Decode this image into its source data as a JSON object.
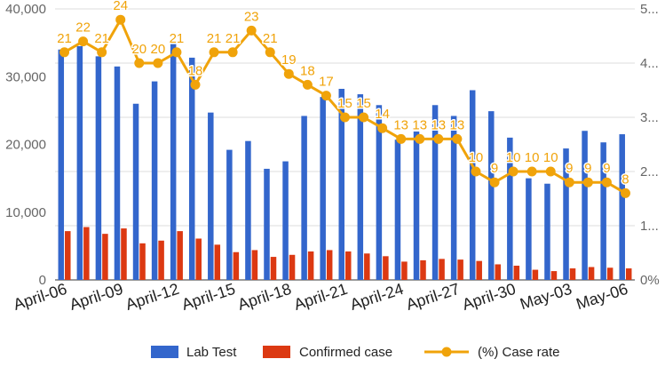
{
  "chart_data": {
    "type": "bar+line",
    "categories": [
      "April-06",
      "April-07",
      "April-08",
      "April-09",
      "April-10",
      "April-11",
      "April-12",
      "April-13",
      "April-14",
      "April-15",
      "April-16",
      "April-17",
      "April-18",
      "April-19",
      "April-20",
      "April-21",
      "April-22",
      "April-23",
      "April-24",
      "April-25",
      "April-26",
      "April-27",
      "April-28",
      "April-29",
      "April-30",
      "May-01",
      "May-02",
      "May-03",
      "May-04",
      "May-05",
      "May-06"
    ],
    "x_tick_labels": [
      "April-06",
      "April-09",
      "April-12",
      "April-15",
      "April-18",
      "April-21",
      "April-24",
      "April-27",
      "April-30",
      "May-03",
      "May-06"
    ],
    "series": [
      {
        "name": "Lab Test",
        "axis": "left",
        "type": "bar",
        "color": "#3366cc",
        "values": [
          34000,
          34500,
          33000,
          31500,
          26000,
          29300,
          34800,
          32800,
          24700,
          19200,
          20500,
          16400,
          17500,
          24200,
          27000,
          28200,
          27400,
          25800,
          20700,
          21900,
          25800,
          24200,
          28000,
          24900,
          21000,
          15000,
          14200,
          19400,
          22000,
          20300,
          21500
        ]
      },
      {
        "name": "Confirmed case",
        "axis": "left",
        "type": "bar",
        "color": "#dc3912",
        "values": [
          7200,
          7800,
          6800,
          7600,
          5400,
          5800,
          7200,
          6100,
          5200,
          4100,
          4400,
          3400,
          3700,
          4200,
          4400,
          4200,
          3900,
          3500,
          2700,
          2900,
          3100,
          3000,
          2800,
          2300,
          2100,
          1500,
          1300,
          1700,
          1900,
          1800,
          1700
        ]
      },
      {
        "name": "(%) Case rate",
        "axis": "right",
        "type": "line",
        "color": "#f0a30a",
        "values": [
          21,
          22,
          21,
          24,
          20,
          20,
          21,
          18,
          21,
          21,
          23,
          21,
          19,
          18,
          17,
          15,
          15,
          14,
          13,
          13,
          13,
          13,
          10,
          9,
          10,
          10,
          10,
          9,
          9,
          9,
          8
        ]
      }
    ],
    "left_axis": {
      "ticks": [
        "0",
        "10,000",
        "20,000",
        "30,000",
        "40,000"
      ],
      "range": [
        0,
        40000
      ]
    },
    "right_axis": {
      "ticks": [
        "0%",
        "1...",
        "2...",
        "3...",
        "4...",
        "5..."
      ],
      "range": [
        0,
        5
      ]
    },
    "grid": true,
    "legend_position": "bottom"
  }
}
